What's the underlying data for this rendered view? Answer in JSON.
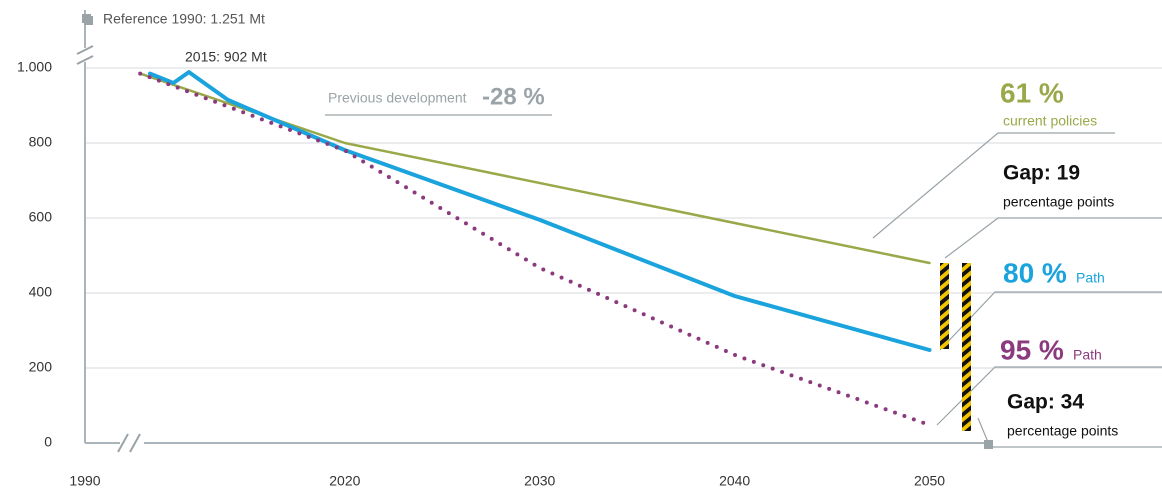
{
  "chart_data": {
    "type": "line",
    "annotations": {
      "reference": "Reference 1990: 1.251 Mt",
      "point_2015": "2015: 902 Mt",
      "previous_label": "Previous development",
      "previous_value": "-28 %",
      "current_value": "61 %",
      "current_label": "current policies",
      "gap1_value": "Gap: 19",
      "gap1_label": "percentage points",
      "path80_value": "80 %",
      "path80_label": "Path",
      "path95_value": "95 %",
      "path95_label": "Path",
      "gap2_value": "Gap: 34",
      "gap2_label": "percentage points"
    },
    "xlim": [
      1990,
      2053
    ],
    "xbreak": [
      1990,
      2007
    ],
    "xticks": [
      1990,
      2020,
      2030,
      2040,
      2050
    ],
    "ylim": [
      0,
      1100
    ],
    "yticks": [
      0,
      200,
      400,
      600,
      800,
      {
        "value": 1000,
        "label": "1.000"
      }
    ],
    "grid": true,
    "series": [
      {
        "color": "#9aa84a",
        "style": "solid",
        "width": 2.5,
        "x": [
          2009.5,
          2020,
          2050
        ],
        "values": [
          985,
          800,
          480
        ]
      },
      {
        "color": "#1aa3dc",
        "style": "solid",
        "width": 4,
        "x": [
          2010,
          2011.2,
          2012,
          2014,
          2020,
          2030,
          2040,
          2050
        ],
        "values": [
          985,
          960,
          989,
          915,
          781,
          595,
          392,
          248
        ]
      },
      {
        "color": "#8b3a7e",
        "style": "dotted",
        "width": 4,
        "x": [
          2009.5,
          2020,
          2030,
          2040,
          2050
        ],
        "values": [
          985,
          780,
          467,
          235,
          48
        ]
      }
    ]
  }
}
